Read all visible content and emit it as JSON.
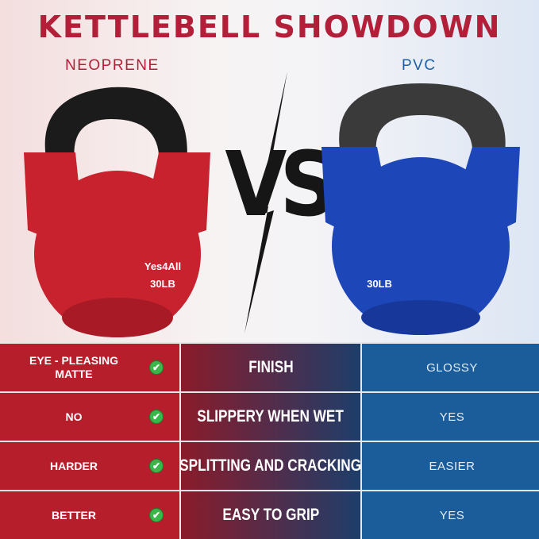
{
  "title": "KETTLEBELL SHOWDOWN",
  "left_label": "NEOPRENE",
  "right_label": "PVC",
  "vs": "VS",
  "left_product": {
    "brand": "Yes4All",
    "weight": "30LB",
    "color": "#c8222e"
  },
  "right_product": {
    "weight": "30LB",
    "color": "#1d47b8"
  },
  "colors": {
    "accent_red": "#b31f38",
    "accent_blue": "#1a5d9a",
    "check": "#3cb64a"
  },
  "rows": [
    {
      "neoprene": "EYE - PLEASING MATTE",
      "feature": "FINISH",
      "pvc": "GLOSSY",
      "icon": "check-circle-icon"
    },
    {
      "neoprene": "NO",
      "feature": "SLIPPERY WHEN WET",
      "pvc": "YES",
      "icon": "check-circle-icon"
    },
    {
      "neoprene": "HARDER",
      "feature": "SPLITTING AND CRACKING",
      "pvc": "EASIER",
      "icon": "check-circle-icon"
    },
    {
      "neoprene": "BETTER",
      "feature": "EASY TO GRIP",
      "pvc": "YES",
      "icon": "check-circle-icon"
    }
  ]
}
